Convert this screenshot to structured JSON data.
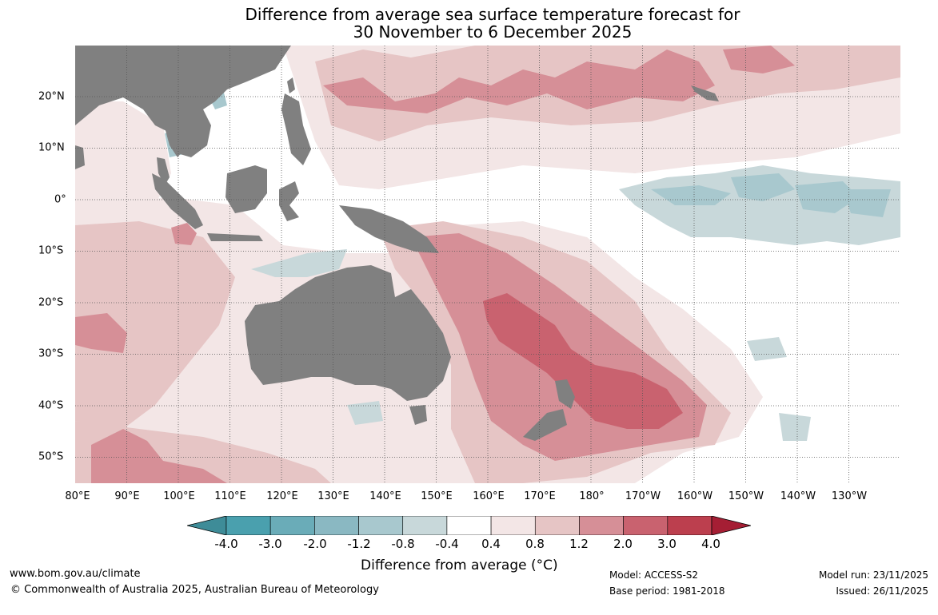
{
  "title": {
    "line1": "Difference from average sea surface temperature forecast for",
    "line2": "30 November to 6 December 2025"
  },
  "axes": {
    "lon_labels": [
      "80°E",
      "90°E",
      "100°E",
      "110°E",
      "120°E",
      "130°E",
      "140°E",
      "150°E",
      "160°E",
      "170°E",
      "180°",
      "170°W",
      "160°W",
      "150°W",
      "140°W",
      "130°W"
    ],
    "lat_labels": [
      "20°N",
      "10°N",
      "0°",
      "10°S",
      "20°S",
      "30°S",
      "40°S",
      "50°S"
    ]
  },
  "colorbar": {
    "title": "Difference from average (°C)",
    "labels": [
      "-4.0",
      "-3.0",
      "-2.0",
      "-1.2",
      "-0.8",
      "-0.4",
      "0.4",
      "0.8",
      "1.2",
      "2.0",
      "3.0",
      "4.0"
    ],
    "colors": [
      "#3e8c98",
      "#4aa0ae",
      "#6aacb8",
      "#8ab8c2",
      "#a8c8ce",
      "#c8d8da",
      "#ffffff",
      "#f3e6e6",
      "#e6c5c5",
      "#d68f97",
      "#c9626f",
      "#bc3f4e",
      "#a51e34"
    ]
  },
  "footer": {
    "website": "www.bom.gov.au/climate",
    "copyright": "© Commonwealth of Australia 2025, Australian Bureau of Meteorology",
    "model": "Model: ACCESS-S2",
    "base_period": "Base period: 1981-2018",
    "model_run": "Model run: 23/11/2025",
    "issued": "Issued: 26/11/2025"
  }
}
